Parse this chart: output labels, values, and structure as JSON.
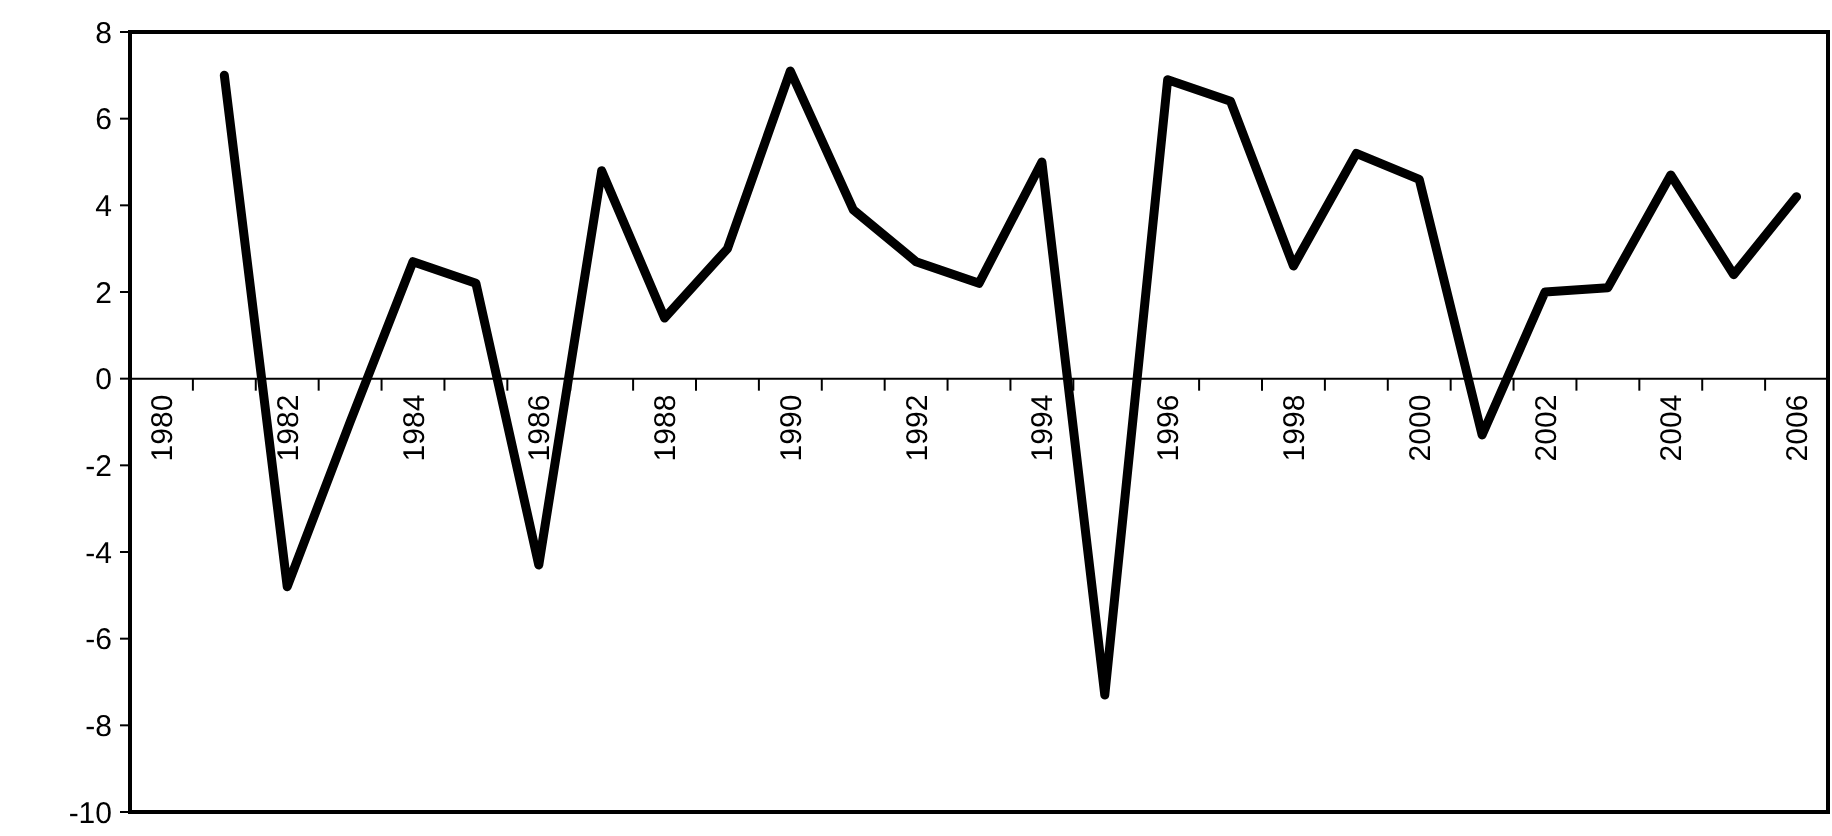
{
  "chart_data": {
    "type": "line",
    "categories": [
      "1980",
      null,
      "1982",
      null,
      "1984",
      null,
      "1986",
      null,
      "1988",
      null,
      "1990",
      null,
      "1992",
      null,
      "1994",
      null,
      "1996",
      null,
      "1998",
      null,
      "2000",
      null,
      "2002",
      null,
      "2004",
      null,
      "2006"
    ],
    "series": [
      {
        "color": "#000000",
        "values": [
          null,
          7.0,
          -4.8,
          -1.0,
          2.7,
          2.2,
          -4.3,
          4.8,
          1.4,
          3.0,
          7.1,
          3.9,
          2.7,
          2.2,
          5.0,
          -7.3,
          6.9,
          6.4,
          2.6,
          5.2,
          4.6,
          -1.3,
          2.0,
          2.1,
          4.7,
          2.4,
          4.2
        ]
      }
    ],
    "ylim": [
      -10,
      8
    ],
    "yticks": [
      -10,
      -8,
      -6,
      -4,
      -2,
      0,
      2,
      4,
      6,
      8
    ],
    "marker": "none",
    "line_style": "solid"
  }
}
